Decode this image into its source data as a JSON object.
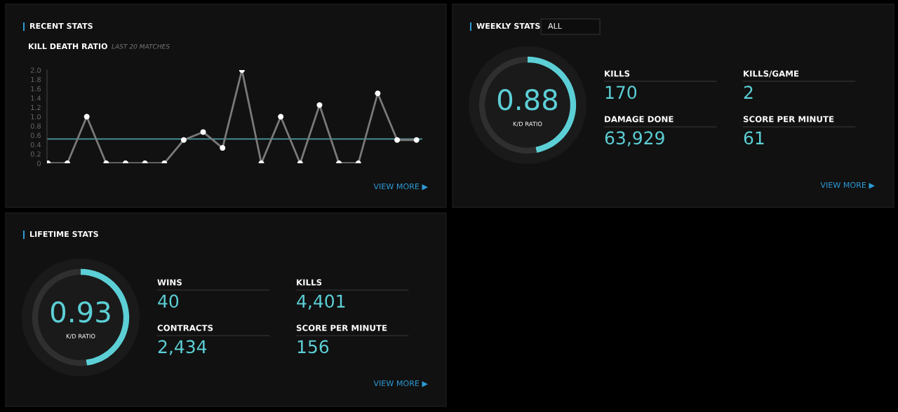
{
  "chart_data": [
    {
      "type": "line",
      "title": "RECENT STATS",
      "subtitle": "KILL DEATH RATIO",
      "annotations": [
        "LAST 20 MATCHES",
        "VIEW MORE ▶"
      ],
      "categories": [
        null,
        null,
        null,
        null,
        null,
        null,
        null,
        null,
        null,
        null,
        null,
        null,
        null,
        null,
        null,
        null,
        null,
        null,
        null,
        null
      ],
      "series": [
        {
          "color": "#7a7a7a",
          "values": [
            0,
            0,
            1,
            0,
            0,
            0,
            0,
            0.5,
            0.67,
            0.33,
            2,
            0,
            1,
            0,
            1.25,
            0,
            0,
            1.5,
            0.5,
            0.5
          ]
        }
      ],
      "ylim": [
        0,
        2
      ],
      "yticks": [
        0,
        0.2,
        0.4,
        0.6,
        0.8,
        {
          "value": 1,
          "label": "1.0"
        },
        1.2,
        1.4,
        1.6,
        1.8,
        {
          "value": 2,
          "label": "2.0"
        }
      ],
      "ref_lines": [
        {
          "axis": "y",
          "value": 0.52,
          "color": "#4a9ba3"
        }
      ],
      "marker": "circle",
      "tick_labels": "y"
    },
    {
      "type": "donut",
      "categories": [
        null,
        null
      ],
      "values": [
        47,
        53
      ],
      "colors": [
        "#5ccfd6",
        "#2f2f2f"
      ],
      "annotations": [
        "0.88",
        "K/D RATIO"
      ]
    },
    {
      "type": "other",
      "title": "WEEKLY STATS",
      "subtitle": "ALL",
      "categories": [
        "KILLS",
        "KILLS/GAME",
        "DAMAGE DONE",
        "SCORE PER MINUTE"
      ],
      "value_labels": [
        "170",
        "2",
        "63,929",
        "61"
      ],
      "annotations": [
        "VIEW MORE ▶"
      ]
    },
    {
      "type": "donut",
      "categories": [
        null,
        null
      ],
      "values": [
        48,
        52
      ],
      "colors": [
        "#5ccfd6",
        "#2f2f2f"
      ],
      "annotations": [
        "0.93",
        "K/D RATIO"
      ]
    },
    {
      "type": "other",
      "title": "LIFETIME STATS",
      "categories": [
        "WINS",
        "KILLS",
        "CONTRACTS",
        "SCORE PER MINUTE"
      ],
      "value_labels": [
        "40",
        "4,401",
        "2,434",
        "156"
      ],
      "annotations": [
        "VIEW MORE ▶"
      ]
    }
  ]
}
